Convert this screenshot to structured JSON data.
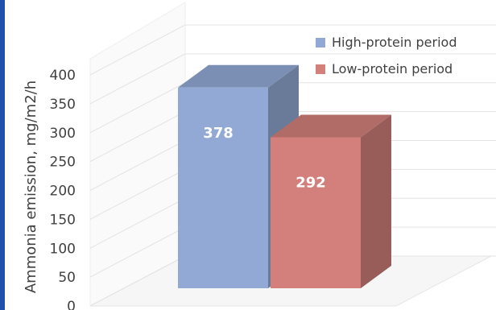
{
  "chart_data": {
    "type": "bar",
    "ylabel": "Ammonia emission, mg/m2/h",
    "ylim": [
      0,
      400
    ],
    "yticks": [
      0,
      50,
      100,
      150,
      200,
      250,
      300,
      350,
      400
    ],
    "series": [
      {
        "name": "High-protein period",
        "value": 378,
        "color": "#93a9d5"
      },
      {
        "name": "Low-protein period",
        "value": 292,
        "color": "#d3807c"
      }
    ],
    "legend_position": "top-right",
    "data_labels": true,
    "grid": true
  }
}
